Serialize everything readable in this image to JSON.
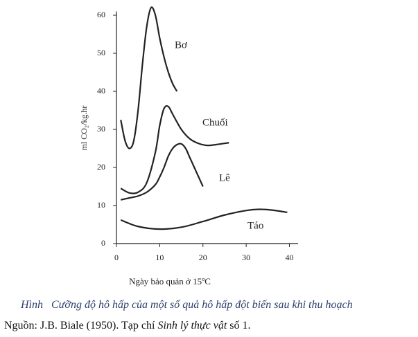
{
  "chart_data": {
    "type": "line",
    "y_label": "ml CO₂/kg.hr",
    "x_label": "Ngày bảo quản ở 15ºC",
    "xlim": [
      0,
      42
    ],
    "ylim": [
      0,
      61
    ],
    "xticks": [
      0,
      10,
      20,
      30,
      40
    ],
    "yticks": [
      0,
      10,
      20,
      30,
      40,
      50,
      60
    ],
    "series": [
      {
        "name": "Bơ",
        "color": "#222222",
        "x": [
          1,
          2,
          3,
          4,
          5,
          6,
          7,
          8,
          9,
          10,
          11,
          12,
          13,
          14
        ],
        "values": [
          32.5,
          27,
          25,
          27,
          35,
          47,
          57,
          62,
          60,
          54,
          49,
          45,
          42,
          40
        ]
      },
      {
        "name": "Chuối",
        "color": "#222222",
        "x": [
          1,
          3,
          5,
          7,
          9,
          10,
          11,
          12,
          13,
          15,
          17,
          19,
          21,
          23,
          26
        ],
        "values": [
          14.5,
          13.3,
          13.5,
          16,
          24,
          31,
          35.5,
          36,
          34,
          30,
          27.5,
          26.3,
          25.8,
          26,
          26.5
        ]
      },
      {
        "name": "Lê",
        "color": "#222222",
        "x": [
          1,
          3,
          5,
          7,
          9,
          10,
          11,
          12,
          13,
          14,
          15,
          16,
          17,
          18,
          19,
          20
        ],
        "values": [
          11.5,
          12,
          12.5,
          13.5,
          15.5,
          17.5,
          20,
          23,
          25,
          26,
          26.2,
          25,
          22.5,
          20,
          17.5,
          15
        ]
      },
      {
        "name": "Táo",
        "color": "#222222",
        "x": [
          1,
          5,
          10,
          15,
          20,
          25,
          30,
          33,
          36,
          39.5
        ],
        "values": [
          6.2,
          4.5,
          3.8,
          4.3,
          5.8,
          7.5,
          8.7,
          9,
          8.8,
          8.2
        ]
      }
    ]
  },
  "caption": {
    "label": "Hình",
    "text": "Cưỡng độ hô hấp của một số quả hô hấp đột biến sau khi thu hoạch"
  },
  "source": {
    "before": "Nguồn: J.B. Biale (1950). Tạp chí ",
    "journal": "Sinh lý thực vật",
    "after": " số 1."
  }
}
